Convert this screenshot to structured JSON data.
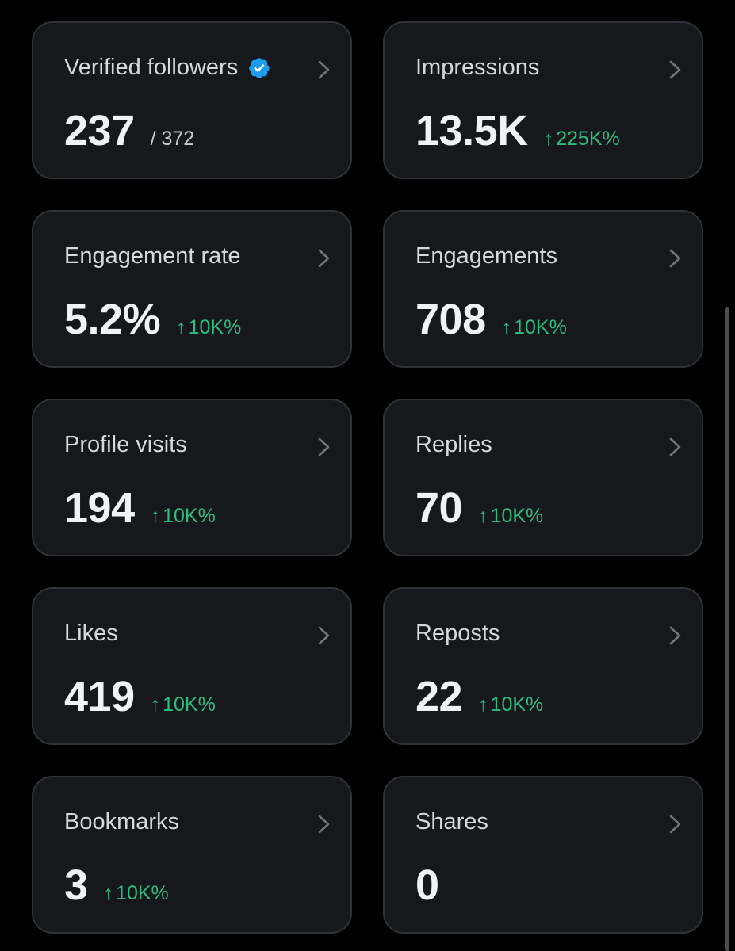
{
  "colors": {
    "background": "#000000",
    "card": "#16181c",
    "border": "#2f3336",
    "positive": "#2dbd7e",
    "verified": "#1d9bf0"
  },
  "cards": [
    {
      "title": "Verified followers",
      "value": "237",
      "secondary": "/ 372",
      "change": "",
      "icon": "verified-badge-icon"
    },
    {
      "title": "Impressions",
      "value": "13.5K",
      "secondary": "",
      "change": "225K%"
    },
    {
      "title": "Engagement rate",
      "value": "5.2%",
      "secondary": "",
      "change": "10K%"
    },
    {
      "title": "Engagements",
      "value": "708",
      "secondary": "",
      "change": "10K%"
    },
    {
      "title": "Profile visits",
      "value": "194",
      "secondary": "",
      "change": "10K%"
    },
    {
      "title": "Replies",
      "value": "70",
      "secondary": "",
      "change": "10K%"
    },
    {
      "title": "Likes",
      "value": "419",
      "secondary": "",
      "change": "10K%"
    },
    {
      "title": "Reposts",
      "value": "22",
      "secondary": "",
      "change": "10K%"
    },
    {
      "title": "Bookmarks",
      "value": "3",
      "secondary": "",
      "change": "10K%"
    },
    {
      "title": "Shares",
      "value": "0",
      "secondary": "",
      "change": ""
    }
  ],
  "arrow_symbol": "↑"
}
